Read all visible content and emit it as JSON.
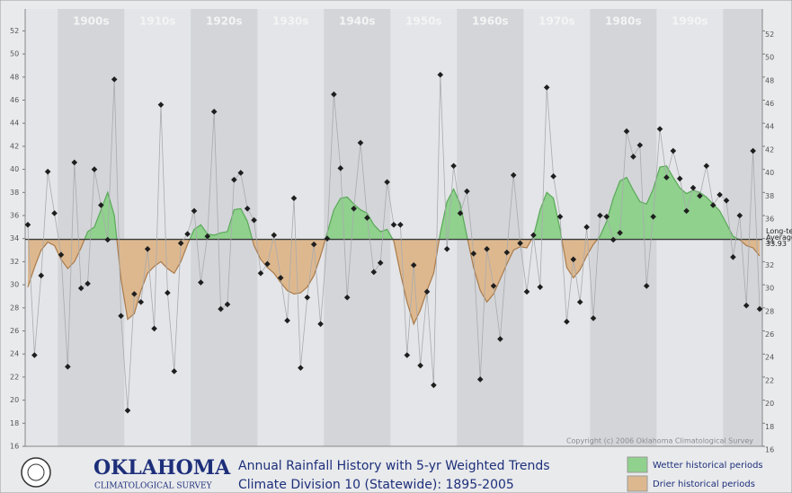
{
  "chart_data": {
    "type": "line",
    "title": "Annual Rainfall History with 5-yr Weighted Trends",
    "subtitle": "Climate Division 10 (Statewide): 1895-2005",
    "logo": {
      "name": "OKLAHOMA",
      "sub": "CLIMATOLOGICAL SURVEY"
    },
    "copyright": "Copyright (c) 2006 Oklahoma Climatological Survey",
    "x": [
      1895,
      1896,
      1897,
      1898,
      1899,
      1900,
      1901,
      1902,
      1903,
      1904,
      1905,
      1906,
      1907,
      1908,
      1909,
      1910,
      1911,
      1912,
      1913,
      1914,
      1915,
      1916,
      1917,
      1918,
      1919,
      1920,
      1921,
      1922,
      1923,
      1924,
      1925,
      1926,
      1927,
      1928,
      1929,
      1930,
      1931,
      1932,
      1933,
      1934,
      1935,
      1936,
      1937,
      1938,
      1939,
      1940,
      1941,
      1942,
      1943,
      1944,
      1945,
      1946,
      1947,
      1948,
      1949,
      1950,
      1951,
      1952,
      1953,
      1954,
      1955,
      1956,
      1957,
      1958,
      1959,
      1960,
      1961,
      1962,
      1963,
      1964,
      1965,
      1966,
      1967,
      1968,
      1969,
      1970,
      1971,
      1972,
      1973,
      1974,
      1975,
      1976,
      1977,
      1978,
      1979,
      1980,
      1981,
      1982,
      1983,
      1984,
      1985,
      1986,
      1987,
      1988,
      1989,
      1990,
      1991,
      1992,
      1993,
      1994,
      1995,
      1996,
      1997,
      1998,
      1999,
      2000,
      2001,
      2002,
      2003,
      2004,
      2005
    ],
    "values": [
      35.2,
      23.9,
      30.8,
      39.8,
      36.2,
      32.6,
      22.9,
      40.6,
      29.7,
      30.1,
      40.0,
      36.9,
      33.9,
      47.8,
      27.3,
      19.1,
      29.2,
      28.5,
      33.1,
      26.2,
      45.6,
      29.3,
      22.5,
      33.6,
      34.4,
      36.4,
      30.2,
      34.2,
      45.0,
      27.9,
      28.3,
      39.1,
      39.7,
      36.6,
      35.6,
      31.0,
      31.8,
      34.3,
      30.6,
      26.9,
      37.5,
      22.8,
      28.9,
      33.5,
      26.6,
      34.0,
      46.5,
      40.1,
      28.9,
      36.6,
      42.3,
      35.8,
      31.1,
      31.9,
      38.9,
      35.2,
      35.2,
      23.9,
      31.7,
      23.0,
      29.4,
      21.3,
      48.2,
      33.1,
      40.3,
      36.2,
      38.1,
      32.7,
      21.8,
      33.1,
      29.9,
      25.3,
      32.8,
      39.5,
      33.6,
      29.4,
      34.3,
      29.8,
      47.1,
      39.4,
      35.9,
      26.8,
      32.2,
      28.5,
      35.0,
      27.1,
      36.0,
      35.9,
      33.9,
      34.5,
      43.3,
      41.1,
      42.1,
      29.9,
      35.9,
      43.5,
      39.3,
      41.6,
      39.2,
      36.4,
      38.4,
      37.7,
      40.3,
      36.9,
      37.8,
      37.3,
      32.4,
      36.0,
      28.2,
      41.6,
      27.9
    ],
    "point_color": "#1e1e1e",
    "line_color": "#a9abae",
    "trend": {
      "values": [
        29.8,
        31.5,
        33.0,
        33.7,
        33.4,
        32.2,
        31.4,
        32.0,
        33.2,
        34.6,
        35.0,
        36.5,
        38.0,
        36.0,
        30.5,
        27.0,
        27.5,
        29.5,
        31.0,
        31.6,
        32.0,
        31.4,
        31.0,
        32.0,
        33.5,
        34.8,
        35.2,
        34.4,
        34.3,
        34.5,
        34.6,
        36.5,
        36.6,
        35.5,
        33.4,
        32.2,
        31.5,
        31.0,
        30.2,
        29.5,
        29.2,
        29.3,
        29.8,
        30.8,
        32.5,
        34.5,
        36.5,
        37.5,
        37.6,
        37.0,
        36.5,
        36.2,
        35.2,
        34.6,
        34.8,
        33.8,
        31.0,
        28.5,
        26.6,
        27.8,
        29.5,
        31.0,
        34.5,
        37.2,
        38.3,
        37.0,
        34.2,
        31.5,
        29.5,
        28.5,
        29.2,
        30.5,
        31.8,
        33.0,
        33.3,
        33.2,
        34.2,
        36.5,
        38.0,
        37.5,
        34.8,
        31.5,
        30.6,
        31.3,
        32.5,
        33.5,
        34.2,
        35.5,
        37.5,
        39.0,
        39.3,
        38.2,
        37.2,
        37.0,
        38.3,
        40.2,
        40.3,
        39.3,
        38.4,
        37.9,
        38.2,
        38.0,
        37.6,
        37.0,
        36.4,
        35.3,
        34.2,
        33.9,
        33.4,
        33.2,
        32.5
      ],
      "above_color": "#8fd18d",
      "below_color": "#ddb88f",
      "above_edge": "#5aa858",
      "below_edge": "#a97a4a"
    },
    "average": {
      "value": 33.93,
      "label": [
        "Long-term",
        "Average"
      ]
    },
    "xlim": [
      1894.6,
      2005.4
    ],
    "xticks": [
      {
        "value": 1904.5,
        "label": "1900s"
      },
      {
        "value": 1914.5,
        "label": "1910s"
      },
      {
        "value": 1924.5,
        "label": "1920s"
      },
      {
        "value": 1934.5,
        "label": "1930s"
      },
      {
        "value": 1944.5,
        "label": "1940s"
      },
      {
        "value": 1954.5,
        "label": "1950s"
      },
      {
        "value": 1964.5,
        "label": "1960s"
      },
      {
        "value": 1974.5,
        "label": "1970s"
      },
      {
        "value": 1984.5,
        "label": "1980s"
      },
      {
        "value": 1994.5,
        "label": "1990s"
      }
    ],
    "ylim": [
      16,
      53.9
    ],
    "yticks": [
      16,
      18,
      20,
      22,
      24,
      26,
      28,
      30,
      32,
      34,
      36,
      38,
      40,
      42,
      44,
      46,
      48,
      50,
      52
    ],
    "legend": [
      {
        "label": "Wetter historical periods",
        "color": "#8fd18d"
      },
      {
        "label": "Drier historical periods",
        "color": "#ddb88f"
      }
    ]
  }
}
